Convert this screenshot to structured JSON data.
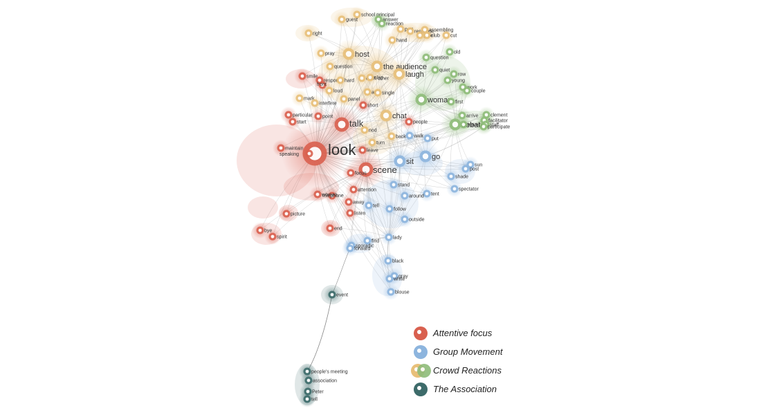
{
  "colors": {
    "attentive": "#d9604f",
    "group": "#8db5de",
    "crowd": "#e8c07a",
    "crowd_green": "#8fbc7a",
    "association": "#3d6b6a"
  },
  "legend": [
    {
      "label": "Attentive focus",
      "color": "#d9604f"
    },
    {
      "label": "Group Movement",
      "color": "#8db5de"
    },
    {
      "label": "Crowd Reactions",
      "color": "#e8c07a",
      "color2": "#8fbc7a"
    },
    {
      "label": "The Association",
      "color": "#3d6b6a"
    }
  ],
  "nodes": [
    {
      "label": "look",
      "group": "attentive",
      "weight": 5
    },
    {
      "label": "talk",
      "group": "attentive",
      "weight": 3
    },
    {
      "label": "scene",
      "group": "attentive",
      "weight": 3
    },
    {
      "label": "speaking",
      "group": "attentive",
      "weight": 1
    },
    {
      "label": "smile",
      "group": "attentive",
      "weight": 1
    },
    {
      "label": "response",
      "group": "attentive",
      "weight": 1
    },
    {
      "label": "front",
      "group": "attentive",
      "weight": 1
    },
    {
      "label": "particular",
      "group": "attentive",
      "weight": 1
    },
    {
      "label": "start",
      "group": "attentive",
      "weight": 1
    },
    {
      "label": "point",
      "group": "attentive",
      "weight": 1
    },
    {
      "label": "short",
      "group": "attentive",
      "weight": 1
    },
    {
      "label": "people",
      "group": "attentive",
      "weight": 1
    },
    {
      "label": "leave",
      "group": "attentive",
      "weight": 1
    },
    {
      "label": "focus",
      "group": "attentive",
      "weight": 1
    },
    {
      "label": "maintain",
      "group": "attentive",
      "weight": 1
    },
    {
      "label": "attention",
      "group": "attentive",
      "weight": 1
    },
    {
      "label": "telephone",
      "group": "attentive",
      "weight": 1
    },
    {
      "label": "away",
      "group": "attentive",
      "weight": 1
    },
    {
      "label": "listen",
      "group": "attentive",
      "weight": 1
    },
    {
      "label": "woman",
      "group": "attentive",
      "weight": 1
    },
    {
      "label": "picture",
      "group": "attentive",
      "weight": 1
    },
    {
      "label": "end",
      "group": "attentive",
      "weight": 1
    },
    {
      "label": "bye",
      "group": "attentive",
      "weight": 1
    },
    {
      "label": "spirit",
      "group": "attentive",
      "weight": 1
    },
    {
      "label": "sit",
      "group": "group",
      "weight": 2
    },
    {
      "label": "go",
      "group": "group",
      "weight": 2
    },
    {
      "label": "walk",
      "group": "group",
      "weight": 1
    },
    {
      "label": "put",
      "group": "group",
      "weight": 1
    },
    {
      "label": "sun",
      "group": "group",
      "weight": 1
    },
    {
      "label": "post",
      "group": "group",
      "weight": 1
    },
    {
      "label": "shade",
      "group": "group",
      "weight": 1
    },
    {
      "label": "spectator",
      "group": "group",
      "weight": 1
    },
    {
      "label": "tent",
      "group": "group",
      "weight": 1
    },
    {
      "label": "stand",
      "group": "group",
      "weight": 1
    },
    {
      "label": "around",
      "group": "group",
      "weight": 1
    },
    {
      "label": "tell",
      "group": "group",
      "weight": 1
    },
    {
      "label": "follow",
      "group": "group",
      "weight": 1
    },
    {
      "label": "outside",
      "group": "group",
      "weight": 1
    },
    {
      "label": "lady",
      "group": "group",
      "weight": 1
    },
    {
      "label": "find",
      "group": "group",
      "weight": 1
    },
    {
      "label": "sporadic",
      "group": "group",
      "weight": 1
    },
    {
      "label": "forward",
      "group": "group",
      "weight": 1
    },
    {
      "label": "black",
      "group": "group",
      "weight": 1
    },
    {
      "label": "gray",
      "group": "group",
      "weight": 1
    },
    {
      "label": "white",
      "group": "group",
      "weight": 1
    },
    {
      "label": "blouse",
      "group": "group",
      "weight": 1
    },
    {
      "label": "host",
      "group": "crowd",
      "weight": 2
    },
    {
      "label": "the audience",
      "group": "crowd",
      "weight": 2
    },
    {
      "label": "laugh",
      "group": "crowd",
      "weight": 2
    },
    {
      "label": "question",
      "group": "crowd",
      "weight": 1
    },
    {
      "label": "chat",
      "group": "crowd",
      "weight": 2
    },
    {
      "label": "hand",
      "group": "crowd",
      "weight": 1
    },
    {
      "label": "right",
      "group": "crowd",
      "weight": 1
    },
    {
      "label": "pray",
      "group": "crowd",
      "weight": 1
    },
    {
      "label": "school principal",
      "group": "crowd",
      "weight": 1
    },
    {
      "label": "guest",
      "group": "crowd",
      "weight": 1
    },
    {
      "label": "part",
      "group": "crowd",
      "weight": 1
    },
    {
      "label": "response",
      "group": "crowd",
      "weight": 1
    },
    {
      "label": "assembling",
      "group": "crowd",
      "weight": 1
    },
    {
      "label": "joke",
      "group": "crowd",
      "weight": 1
    },
    {
      "label": "club",
      "group": "crowd",
      "weight": 1
    },
    {
      "label": "cut",
      "group": "crowd",
      "weight": 1
    },
    {
      "label": "hard",
      "group": "crowd",
      "weight": 1
    },
    {
      "label": "each other",
      "group": "crowd",
      "weight": 1
    },
    {
      "label": "clap",
      "group": "crowd",
      "weight": 1
    },
    {
      "label": "loud",
      "group": "crowd",
      "weight": 1
    },
    {
      "label": "ask",
      "group": "crowd",
      "weight": 1
    },
    {
      "label": "single",
      "group": "crowd",
      "weight": 1
    },
    {
      "label": "mark",
      "group": "crowd",
      "weight": 1
    },
    {
      "label": "interfere",
      "group": "crowd",
      "weight": 1
    },
    {
      "label": "panel",
      "group": "crowd",
      "weight": 1
    },
    {
      "label": "nod",
      "group": "crowd",
      "weight": 1
    },
    {
      "label": "turn",
      "group": "crowd",
      "weight": 1
    },
    {
      "label": "back",
      "group": "crowd",
      "weight": 1
    },
    {
      "label": "woman",
      "group": "crowd_green",
      "weight": 2
    },
    {
      "label": "debate",
      "group": "crowd_green",
      "weight": 2
    },
    {
      "label": "question",
      "group": "crowd_green",
      "weight": 1
    },
    {
      "label": "old",
      "group": "crowd_green",
      "weight": 1
    },
    {
      "label": "quiet",
      "group": "crowd_green",
      "weight": 1
    },
    {
      "label": "row",
      "group": "crowd_green",
      "weight": 1
    },
    {
      "label": "young",
      "group": "crowd_green",
      "weight": 1
    },
    {
      "label": "work",
      "group": "crowd_green",
      "weight": 1
    },
    {
      "label": "couple",
      "group": "crowd_green",
      "weight": 1
    },
    {
      "label": "first",
      "group": "crowd_green",
      "weight": 1
    },
    {
      "label": "arrive",
      "group": "crowd_green",
      "weight": 1
    },
    {
      "label": "travel",
      "group": "crowd_green",
      "weight": 1
    },
    {
      "label": "clement",
      "group": "crowd_green",
      "weight": 1
    },
    {
      "label": "facilitator",
      "group": "crowd_green",
      "weight": 1
    },
    {
      "label": "staff",
      "group": "crowd_green",
      "weight": 1
    },
    {
      "label": "participate",
      "group": "crowd_green",
      "weight": 1
    },
    {
      "label": "answer",
      "group": "crowd_green",
      "weight": 1
    },
    {
      "label": "reaction",
      "group": "crowd_green",
      "weight": 1
    },
    {
      "label": "event",
      "group": "association",
      "weight": 1
    },
    {
      "label": "people's meeting",
      "group": "association",
      "weight": 1
    },
    {
      "label": "association",
      "group": "association",
      "weight": 1
    },
    {
      "label": "Peter",
      "group": "association",
      "weight": 1
    },
    {
      "label": "tell",
      "group": "association",
      "weight": 1
    }
  ]
}
